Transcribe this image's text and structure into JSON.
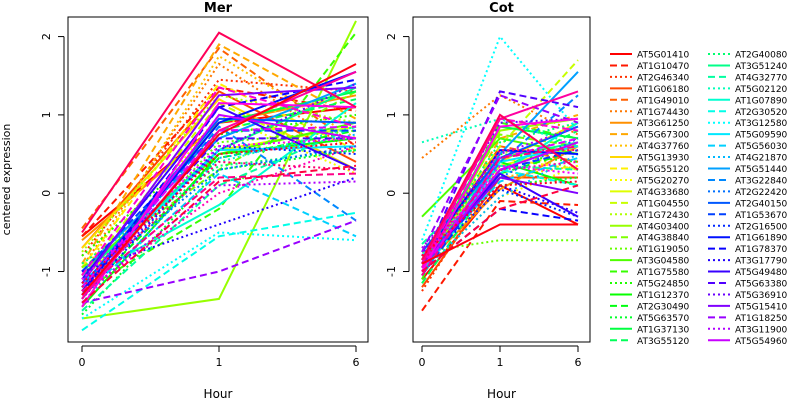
{
  "chart_data": [
    {
      "type": "line",
      "title": "Mer",
      "xlabel": "Hour",
      "ylabel": "centered expression",
      "categories": [
        "0",
        "1",
        "6"
      ],
      "yticks": [
        "-1",
        "0",
        "1",
        "2"
      ],
      "ylim": [
        -1.9,
        2.25
      ],
      "grid": false
    },
    {
      "type": "line",
      "title": "Cot",
      "xlabel": "Hour",
      "ylabel": "",
      "categories": [
        "0",
        "1",
        "6"
      ],
      "yticks": [
        "-1",
        "0",
        "1",
        "2"
      ],
      "ylim": [
        -1.9,
        2.25
      ],
      "grid": false
    }
  ],
  "legend": {
    "placement": "right",
    "entries": [
      {
        "name": "AT5G01410",
        "color": "#FF0000",
        "dash": "solid",
        "mer": [
          -0.55,
          0.9,
          1.1
        ],
        "cot": [
          -1.1,
          0.1,
          -0.4
        ]
      },
      {
        "name": "AT1G10470",
        "color": "#FF1800",
        "dash": "dashed",
        "mer": [
          -0.55,
          1.35,
          1.05
        ],
        "cot": [
          -1.5,
          -0.1,
          -0.15
        ]
      },
      {
        "name": "AT2G46340",
        "color": "#FF3000",
        "dash": "dotted",
        "mer": [
          -0.8,
          1.45,
          1.3
        ],
        "cot": [
          -1.25,
          0.3,
          0.1
        ]
      },
      {
        "name": "AT1G06180",
        "color": "#FF4800",
        "dash": "solid",
        "mer": [
          -0.7,
          1.3,
          0.4
        ],
        "cot": [
          -1.2,
          0.2,
          0.2
        ]
      },
      {
        "name": "AT1G49010",
        "color": "#FF6000",
        "dash": "dashed",
        "mer": [
          -0.45,
          1.85,
          0.6
        ],
        "cot": [
          -0.95,
          0.6,
          0.4
        ]
      },
      {
        "name": "AT1G74430",
        "color": "#FF7800",
        "dash": "dotted",
        "mer": [
          -0.95,
          1.65,
          0.5
        ],
        "cot": [
          0.45,
          1.25,
          0.75
        ]
      },
      {
        "name": "AT3G61250",
        "color": "#FF9000",
        "dash": "solid",
        "mer": [
          -0.6,
          0.9,
          1.25
        ],
        "cot": [
          -0.95,
          0.05,
          0.6
        ]
      },
      {
        "name": "AT5G67300",
        "color": "#FFA800",
        "dash": "dashed",
        "mer": [
          -0.9,
          1.9,
          0.95
        ],
        "cot": [
          -1.0,
          0.7,
          1.0
        ]
      },
      {
        "name": "AT4G37760",
        "color": "#FFC000",
        "dash": "dotted",
        "mer": [
          -1.05,
          1.75,
          0.7
        ],
        "cot": [
          -0.85,
          0.2,
          0.35
        ]
      },
      {
        "name": "AT5G13930",
        "color": "#FFD800",
        "dash": "solid",
        "mer": [
          -0.7,
          1.2,
          0.3
        ],
        "cot": [
          -0.9,
          0.4,
          0.9
        ]
      },
      {
        "name": "AT5G55120",
        "color": "#FFF000",
        "dash": "dashed",
        "mer": [
          -0.95,
          1.4,
          0.55
        ],
        "cot": [
          -0.95,
          0.45,
          0.3
        ]
      },
      {
        "name": "AT5G20270",
        "color": "#F7FF00",
        "dash": "dotted",
        "mer": [
          -1.2,
          1.0,
          0.25
        ],
        "cot": [
          -1.0,
          -0.05,
          0.35
        ]
      },
      {
        "name": "AT4G33680",
        "color": "#DFFF00",
        "dash": "solid",
        "mer": [
          -1.1,
          0.55,
          0.85
        ],
        "cot": [
          -0.8,
          0.35,
          0.6
        ]
      },
      {
        "name": "AT1G04550",
        "color": "#C7FF00",
        "dash": "dashed",
        "mer": [
          -1.05,
          1.15,
          0.3
        ],
        "cot": [
          -0.85,
          0.6,
          1.7
        ]
      },
      {
        "name": "AT1G72430",
        "color": "#AFFF00",
        "dash": "dotted",
        "mer": [
          -0.75,
          1.25,
          0.9
        ],
        "cot": [
          -1.0,
          0.55,
          0.3
        ]
      },
      {
        "name": "AT4G03400",
        "color": "#97FF00",
        "dash": "solid",
        "mer": [
          -1.6,
          -1.35,
          2.2
        ],
        "cot": [
          -1.0,
          0.8,
          0.95
        ]
      },
      {
        "name": "AT4G38840",
        "color": "#7FFF00",
        "dash": "dashed",
        "mer": [
          -0.95,
          0.3,
          1.3
        ],
        "cot": [
          -0.85,
          0.75,
          0.6
        ]
      },
      {
        "name": "AT1G19050",
        "color": "#67FF00",
        "dash": "dotted",
        "mer": [
          -1.25,
          0.65,
          0.8
        ],
        "cot": [
          -0.75,
          -0.6,
          -0.6
        ]
      },
      {
        "name": "AT3G04580",
        "color": "#4FFF00",
        "dash": "solid",
        "mer": [
          -1.0,
          0.5,
          0.9
        ],
        "cot": [
          -0.3,
          0.7,
          0.5
        ]
      },
      {
        "name": "AT1G75580",
        "color": "#37FF00",
        "dash": "dashed",
        "mer": [
          -1.25,
          -0.2,
          2.05
        ],
        "cot": [
          -1.1,
          0.9,
          0.7
        ]
      },
      {
        "name": "AT5G24850",
        "color": "#1FFF00",
        "dash": "dotted",
        "mer": [
          -0.8,
          0.75,
          1.0
        ],
        "cot": [
          -0.9,
          0.5,
          0.4
        ]
      },
      {
        "name": "AT1G12370",
        "color": "#07FF00",
        "dash": "solid",
        "mer": [
          -1.45,
          0.5,
          0.7
        ],
        "cot": [
          -0.95,
          0.4,
          0.1
        ]
      },
      {
        "name": "AT2G30490",
        "color": "#00FF10",
        "dash": "dashed",
        "mer": [
          -1.3,
          0.45,
          0.8
        ],
        "cot": [
          -0.9,
          0.25,
          0.55
        ]
      },
      {
        "name": "AT5G63570",
        "color": "#00FF28",
        "dash": "dotted",
        "mer": [
          -1.55,
          0.3,
          0.55
        ],
        "cot": [
          -0.7,
          0.1,
          0.2
        ]
      },
      {
        "name": "AT1G37130",
        "color": "#00FF40",
        "dash": "solid",
        "mer": [
          -1.2,
          0.9,
          1.3
        ],
        "cot": [
          -0.95,
          0.85,
          0.7
        ]
      },
      {
        "name": "AT3G55120",
        "color": "#00FF58",
        "dash": "dashed",
        "mer": [
          -1.35,
          0.8,
          1.2
        ],
        "cot": [
          -1.15,
          0.3,
          0.8
        ]
      },
      {
        "name": "AT2G40080",
        "color": "#00FF70",
        "dash": "dotted",
        "mer": [
          -0.9,
          0.35,
          0.55
        ],
        "cot": [
          -0.85,
          0.65,
          0.9
        ]
      },
      {
        "name": "AT3G51240",
        "color": "#00FF88",
        "dash": "solid",
        "mer": [
          -1.05,
          0.55,
          1.35
        ],
        "cot": [
          -0.8,
          0.45,
          0.65
        ]
      },
      {
        "name": "AT4G32770",
        "color": "#00FFA0",
        "dash": "dashed",
        "mer": [
          -1.5,
          0.1,
          0.85
        ],
        "cot": [
          -0.65,
          0.35,
          0.3
        ]
      },
      {
        "name": "AT5G02120",
        "color": "#00FFB8",
        "dash": "dotted",
        "mer": [
          -1.2,
          0.4,
          0.85
        ],
        "cot": [
          0.65,
          0.95,
          0.6
        ]
      },
      {
        "name": "AT1G07890",
        "color": "#00FFD0",
        "dash": "solid",
        "mer": [
          -1.1,
          -0.15,
          1.15
        ],
        "cot": [
          -1.0,
          0.25,
          0.9
        ]
      },
      {
        "name": "AT2G30520",
        "color": "#00FFE8",
        "dash": "dashed",
        "mer": [
          -1.75,
          -0.55,
          -0.25
        ],
        "cot": [
          -0.8,
          0.3,
          0.1
        ]
      },
      {
        "name": "AT3G12580",
        "color": "#00FFFF",
        "dash": "dotted",
        "mer": [
          -1.6,
          -0.5,
          -0.6
        ],
        "cot": [
          -0.6,
          2.0,
          0.8
        ]
      },
      {
        "name": "AT5G09590",
        "color": "#00E8FF",
        "dash": "solid",
        "mer": [
          -1.15,
          0.55,
          0.6
        ],
        "cot": [
          -1.05,
          0.4,
          0.6
        ]
      },
      {
        "name": "AT5G56030",
        "color": "#00D0FF",
        "dash": "dashed",
        "mer": [
          -1.3,
          0.25,
          -0.55
        ],
        "cot": [
          -0.9,
          0.15,
          0.45
        ]
      },
      {
        "name": "AT4G21870",
        "color": "#00B8FF",
        "dash": "dotted",
        "mer": [
          -1.4,
          0.45,
          0.75
        ],
        "cot": [
          -1.0,
          -0.05,
          0.5
        ]
      },
      {
        "name": "AT5G51440",
        "color": "#00A0FF",
        "dash": "solid",
        "mer": [
          -1.0,
          0.7,
          1.4
        ],
        "cot": [
          -1.05,
          0.5,
          1.55
        ]
      },
      {
        "name": "AT3G22840",
        "color": "#0088FF",
        "dash": "dashed",
        "mer": [
          -1.25,
          0.85,
          -0.35
        ],
        "cot": [
          -0.95,
          0.4,
          1.25
        ]
      },
      {
        "name": "AT2G22420",
        "color": "#0070FF",
        "dash": "dotted",
        "mer": [
          -1.15,
          0.3,
          0.6
        ],
        "cot": [
          -0.85,
          0.2,
          0.7
        ]
      },
      {
        "name": "AT2G40150",
        "color": "#0058FF",
        "dash": "solid",
        "mer": [
          -1.2,
          0.95,
          0.9
        ],
        "cot": [
          -0.75,
          0.45,
          0.85
        ]
      },
      {
        "name": "AT1G53670",
        "color": "#0040FF",
        "dash": "dashed",
        "mer": [
          -1.0,
          0.8,
          0.8
        ],
        "cot": [
          -1.05,
          0.3,
          0.55
        ]
      },
      {
        "name": "AT2G16500",
        "color": "#0028FF",
        "dash": "dotted",
        "mer": [
          -1.35,
          0.6,
          0.5
        ],
        "cot": [
          -0.9,
          0.05,
          -0.3
        ]
      },
      {
        "name": "AT1G61890",
        "color": "#0010FF",
        "dash": "solid",
        "mer": [
          -1.25,
          0.9,
          1.55
        ],
        "cot": [
          -0.85,
          0.55,
          0.5
        ]
      },
      {
        "name": "AT1G78370",
        "color": "#0800FF",
        "dash": "dashed",
        "mer": [
          -1.3,
          1.1,
          1.45
        ],
        "cot": [
          -1.0,
          -0.2,
          -0.35
        ]
      },
      {
        "name": "AT3G17790",
        "color": "#2000FF",
        "dash": "dotted",
        "mer": [
          -1.0,
          -0.4,
          0.2
        ],
        "cot": [
          -0.8,
          0.1,
          -0.25
        ]
      },
      {
        "name": "AT5G49480",
        "color": "#3800FF",
        "dash": "solid",
        "mer": [
          -1.1,
          1.1,
          0.3
        ],
        "cot": [
          -0.95,
          0.25,
          -0.3
        ]
      },
      {
        "name": "AT5G63380",
        "color": "#5000FF",
        "dash": "dashed",
        "mer": [
          -1.2,
          0.7,
          0.7
        ],
        "cot": [
          -0.9,
          1.3,
          1.1
        ]
      },
      {
        "name": "AT5G36910",
        "color": "#6800FF",
        "dash": "dotted",
        "mer": [
          -1.25,
          0.55,
          1.4
        ],
        "cot": [
          -0.8,
          0.9,
          0.95
        ]
      },
      {
        "name": "AT5G15410",
        "color": "#8000FF",
        "dash": "solid",
        "mer": [
          -1.15,
          1.25,
          1.35
        ],
        "cot": [
          -0.9,
          0.2,
          0.0
        ]
      },
      {
        "name": "AT1G18250",
        "color": "#9800FF",
        "dash": "dashed",
        "mer": [
          -1.4,
          -1.0,
          -0.35
        ],
        "cot": [
          -0.75,
          1.25,
          0.9
        ]
      },
      {
        "name": "AT3G11900",
        "color": "#B000FF",
        "dash": "dotted",
        "mer": [
          -1.3,
          0.1,
          0.15
        ],
        "cot": [
          -0.7,
          0.5,
          0.85
        ]
      },
      {
        "name": "AT5G54960",
        "color": "#C800FF",
        "dash": "solid",
        "mer": [
          -1.35,
          1.0,
          0.7
        ],
        "cot": [
          -0.95,
          0.3,
          0.65
        ]
      },
      {
        "name": "",
        "color": "#E000FF",
        "dash": "dashed",
        "mer": [
          -1.2,
          0.8,
          0.85
        ],
        "cot": [
          -1.0,
          0.45,
          0.7
        ]
      },
      {
        "name": "",
        "color": "#F800FF",
        "dash": "dotted",
        "mer": [
          -1.1,
          0.6,
          0.7
        ],
        "cot": [
          -0.85,
          0.35,
          0.25
        ]
      },
      {
        "name": "",
        "color": "#FF00E8",
        "dash": "solid",
        "mer": [
          -1.45,
          1.15,
          1.1
        ],
        "cot": [
          -1.0,
          0.85,
          0.95
        ]
      },
      {
        "name": "",
        "color": "#FF00D0",
        "dash": "dashed",
        "mer": [
          -1.05,
          1.35,
          0.85
        ],
        "cot": [
          -0.95,
          0.95,
          0.8
        ]
      },
      {
        "name": "",
        "color": "#FF00B8",
        "dash": "dotted",
        "mer": [
          -1.3,
          0.0,
          0.6
        ],
        "cot": [
          -0.8,
          0.3,
          0.4
        ]
      },
      {
        "name": "",
        "color": "#FF00A0",
        "dash": "solid",
        "mer": [
          -1.35,
          0.8,
          1.55
        ],
        "cot": [
          -0.9,
          0.95,
          1.3
        ]
      },
      {
        "name": "",
        "color": "#FF0088",
        "dash": "dashed",
        "mer": [
          -1.25,
          0.2,
          0.25
        ],
        "cot": [
          -1.05,
          0.45,
          0.6
        ]
      },
      {
        "name": "",
        "color": "#FF0070",
        "dash": "dotted",
        "mer": [
          -1.2,
          0.4,
          0.3
        ],
        "cot": [
          -0.9,
          0.55,
          0.55
        ]
      },
      {
        "name": "",
        "color": "#FF0058",
        "dash": "solid",
        "mer": [
          -0.5,
          2.05,
          1.1
        ],
        "cot": [
          -0.85,
          1.0,
          0.3
        ]
      },
      {
        "name": "",
        "color": "#FF0040",
        "dash": "dashed",
        "mer": [
          -1.4,
          0.15,
          0.35
        ],
        "cot": [
          -1.0,
          -0.2,
          0.1
        ]
      },
      {
        "name": "",
        "color": "#FF0028",
        "dash": "dotted",
        "mer": [
          -1.15,
          0.5,
          0.65
        ],
        "cot": [
          -0.8,
          0.1,
          0.15
        ]
      },
      {
        "name": "",
        "color": "#FF0010",
        "dash": "solid",
        "mer": [
          -1.3,
          0.75,
          1.65
        ],
        "cot": [
          -0.9,
          -0.4,
          -0.4
        ]
      }
    ]
  }
}
